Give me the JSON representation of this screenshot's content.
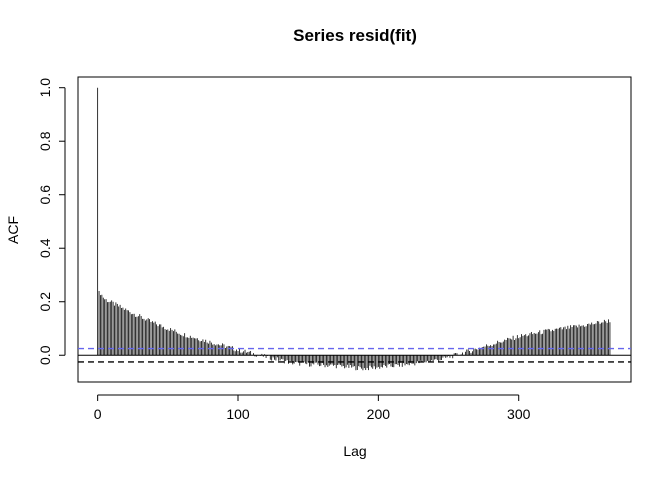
{
  "chart_data": {
    "type": "bar",
    "title": "Series  resid(fit)",
    "xlabel": "Lag",
    "ylabel": "ACF",
    "xlim": [
      -14,
      380
    ],
    "ylim": [
      -0.1,
      1.04
    ],
    "x_ticks": [
      0,
      100,
      200,
      300
    ],
    "x_tick_labels": [
      "0",
      "100",
      "200",
      "300"
    ],
    "y_ticks": [
      0.0,
      0.2,
      0.4,
      0.6,
      0.8,
      1.0
    ],
    "y_tick_labels": [
      "0.0",
      "0.2",
      "0.4",
      "0.6",
      "0.8",
      "1.0"
    ],
    "max_lag": 365,
    "acf_profile": [
      {
        "lag": 0,
        "acf": 1.0
      },
      {
        "lag": 1,
        "acf": 0.24
      },
      {
        "lag": 5,
        "acf": 0.21
      },
      {
        "lag": 20,
        "acf": 0.17
      },
      {
        "lag": 40,
        "acf": 0.12
      },
      {
        "lag": 60,
        "acf": 0.08
      },
      {
        "lag": 80,
        "acf": 0.05
      },
      {
        "lag": 100,
        "acf": 0.02
      },
      {
        "lag": 115,
        "acf": 0.0
      },
      {
        "lag": 140,
        "acf": -0.03
      },
      {
        "lag": 170,
        "acf": -0.04
      },
      {
        "lag": 190,
        "acf": -0.05
      },
      {
        "lag": 220,
        "acf": -0.035
      },
      {
        "lag": 245,
        "acf": -0.015
      },
      {
        "lag": 255,
        "acf": 0.0
      },
      {
        "lag": 280,
        "acf": 0.04
      },
      {
        "lag": 300,
        "acf": 0.07
      },
      {
        "lag": 320,
        "acf": 0.09
      },
      {
        "lag": 345,
        "acf": 0.11
      },
      {
        "lag": 365,
        "acf": 0.13
      }
    ],
    "ci_upper": 0.025,
    "ci_lower": -0.025,
    "ci_upper_color": "#6666ee",
    "ci_lower_color": "#000000",
    "bar_color": "#000000",
    "grid": false
  }
}
